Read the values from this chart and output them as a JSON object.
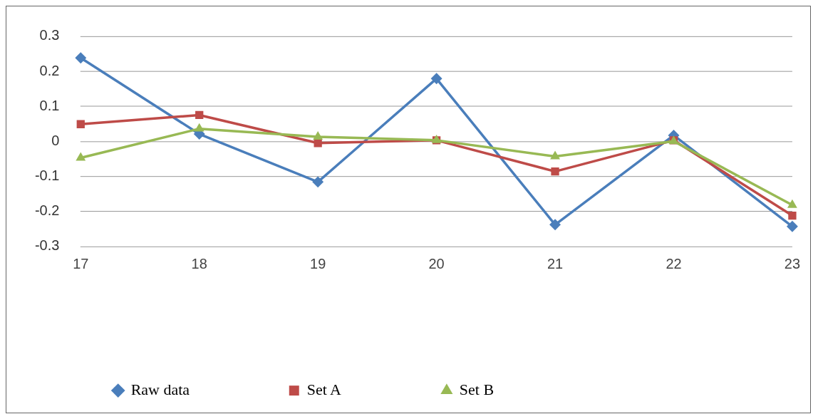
{
  "chart_data": {
    "type": "line",
    "categories": [
      "17",
      "18",
      "19",
      "20",
      "21",
      "22",
      "23"
    ],
    "series": [
      {
        "name": "Raw data",
        "color": "#4a7ebb",
        "marker": "diamond",
        "values": [
          0.238,
          0.021,
          -0.116,
          0.179,
          -0.238,
          0.017,
          -0.243
        ]
      },
      {
        "name": "Set A",
        "color": "#be4b48",
        "marker": "square",
        "values": [
          0.049,
          0.075,
          -0.005,
          0.003,
          -0.086,
          0.003,
          -0.212
        ]
      },
      {
        "name": "Set B",
        "color": "#98b954",
        "marker": "triangle",
        "values": [
          -0.047,
          0.036,
          0.013,
          0.003,
          -0.043,
          0,
          -0.182
        ]
      }
    ],
    "ylim": [
      -0.3,
      0.3
    ],
    "yticks": [
      -0.3,
      -0.2,
      -0.1,
      0,
      0.1,
      0.2,
      0.3
    ],
    "grid": "y",
    "legend": "bottom",
    "line_style": "solid"
  }
}
